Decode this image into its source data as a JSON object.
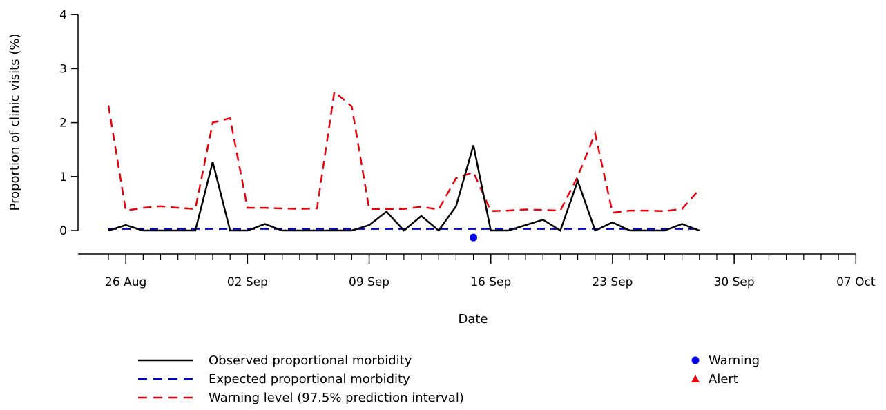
{
  "chart_data": {
    "type": "line",
    "xlabel": "Date",
    "ylabel": "Proportion of clinic visits (%)",
    "ylim": [
      0,
      4
    ],
    "y_ticks": [
      0,
      1,
      2,
      3,
      4
    ],
    "x_tick_labels": [
      {
        "date": "2024-08-26",
        "label": "26 Aug"
      },
      {
        "date": "2024-09-02",
        "label": "02 Sep"
      },
      {
        "date": "2024-09-09",
        "label": "09 Sep"
      },
      {
        "date": "2024-09-16",
        "label": "16 Sep"
      },
      {
        "date": "2024-09-23",
        "label": "23 Sep"
      },
      {
        "date": "2024-09-30",
        "label": "30 Sep"
      },
      {
        "date": "2024-10-07",
        "label": "07 Oct"
      }
    ],
    "x_range": [
      "2024-08-25",
      "2024-10-07"
    ],
    "dates": [
      "2024-08-25",
      "2024-08-26",
      "2024-08-27",
      "2024-08-28",
      "2024-08-29",
      "2024-08-30",
      "2024-08-31",
      "2024-09-01",
      "2024-09-02",
      "2024-09-03",
      "2024-09-04",
      "2024-09-05",
      "2024-09-06",
      "2024-09-07",
      "2024-09-08",
      "2024-09-09",
      "2024-09-10",
      "2024-09-11",
      "2024-09-12",
      "2024-09-13",
      "2024-09-14",
      "2024-09-15",
      "2024-09-16",
      "2024-09-17",
      "2024-09-18",
      "2024-09-19",
      "2024-09-20",
      "2024-09-21",
      "2024-09-22",
      "2024-09-23",
      "2024-09-24",
      "2024-09-25",
      "2024-09-26",
      "2024-09-27",
      "2024-09-28"
    ],
    "series": [
      {
        "name": "Observed proportional morbidity",
        "color": "#000000",
        "dash": "solid",
        "values": [
          0.0,
          0.1,
          0.0,
          0.0,
          0.0,
          0.0,
          1.27,
          0.0,
          0.0,
          0.12,
          0.0,
          0.0,
          0.0,
          0.0,
          0.0,
          0.1,
          0.35,
          0.0,
          0.27,
          0.0,
          0.45,
          1.58,
          0.0,
          0.0,
          0.1,
          0.2,
          0.0,
          0.92,
          0.0,
          0.15,
          0.0,
          0.0,
          0.0,
          0.12,
          0.0
        ]
      },
      {
        "name": "Expected proportional morbidity",
        "color": "#0000cc",
        "dash": "dashed",
        "values": [
          0.03,
          0.03,
          0.03,
          0.03,
          0.03,
          0.03,
          0.03,
          0.03,
          0.03,
          0.03,
          0.03,
          0.03,
          0.03,
          0.03,
          0.03,
          0.03,
          0.03,
          0.03,
          0.03,
          0.03,
          0.03,
          0.03,
          0.03,
          0.03,
          0.03,
          0.03,
          0.03,
          0.03,
          0.03,
          0.03,
          0.03,
          0.03,
          0.03,
          0.03,
          0.03
        ]
      },
      {
        "name": "Warning level (97.5% prediction interval)",
        "color": "#e8000b",
        "dash": "dashed",
        "values": [
          2.32,
          0.37,
          0.42,
          0.45,
          0.42,
          0.4,
          2.0,
          2.08,
          0.42,
          0.42,
          0.41,
          0.4,
          0.41,
          2.57,
          2.3,
          0.4,
          0.4,
          0.4,
          0.44,
          0.39,
          0.97,
          1.08,
          0.36,
          0.37,
          0.39,
          0.38,
          0.37,
          1.0,
          1.8,
          0.33,
          0.37,
          0.37,
          0.36,
          0.4,
          0.76
        ]
      }
    ],
    "markers": [
      {
        "name": "Warning",
        "shape": "circle",
        "color": "#0000ee",
        "date": "2024-09-15",
        "y": -0.13
      }
    ],
    "legend": {
      "lines": [
        {
          "label": "Observed proportional morbidity",
          "color": "#000000",
          "dash": "solid"
        },
        {
          "label": "Expected proportional morbidity",
          "color": "#0000cc",
          "dash": "dashed"
        },
        {
          "label": "Warning level (97.5% prediction interval)",
          "color": "#e8000b",
          "dash": "dashed"
        }
      ],
      "symbols": [
        {
          "label": "Warning",
          "shape": "circle",
          "color": "#0000ee"
        },
        {
          "label": "Alert",
          "shape": "triangle",
          "color": "#e8000b"
        }
      ]
    }
  }
}
